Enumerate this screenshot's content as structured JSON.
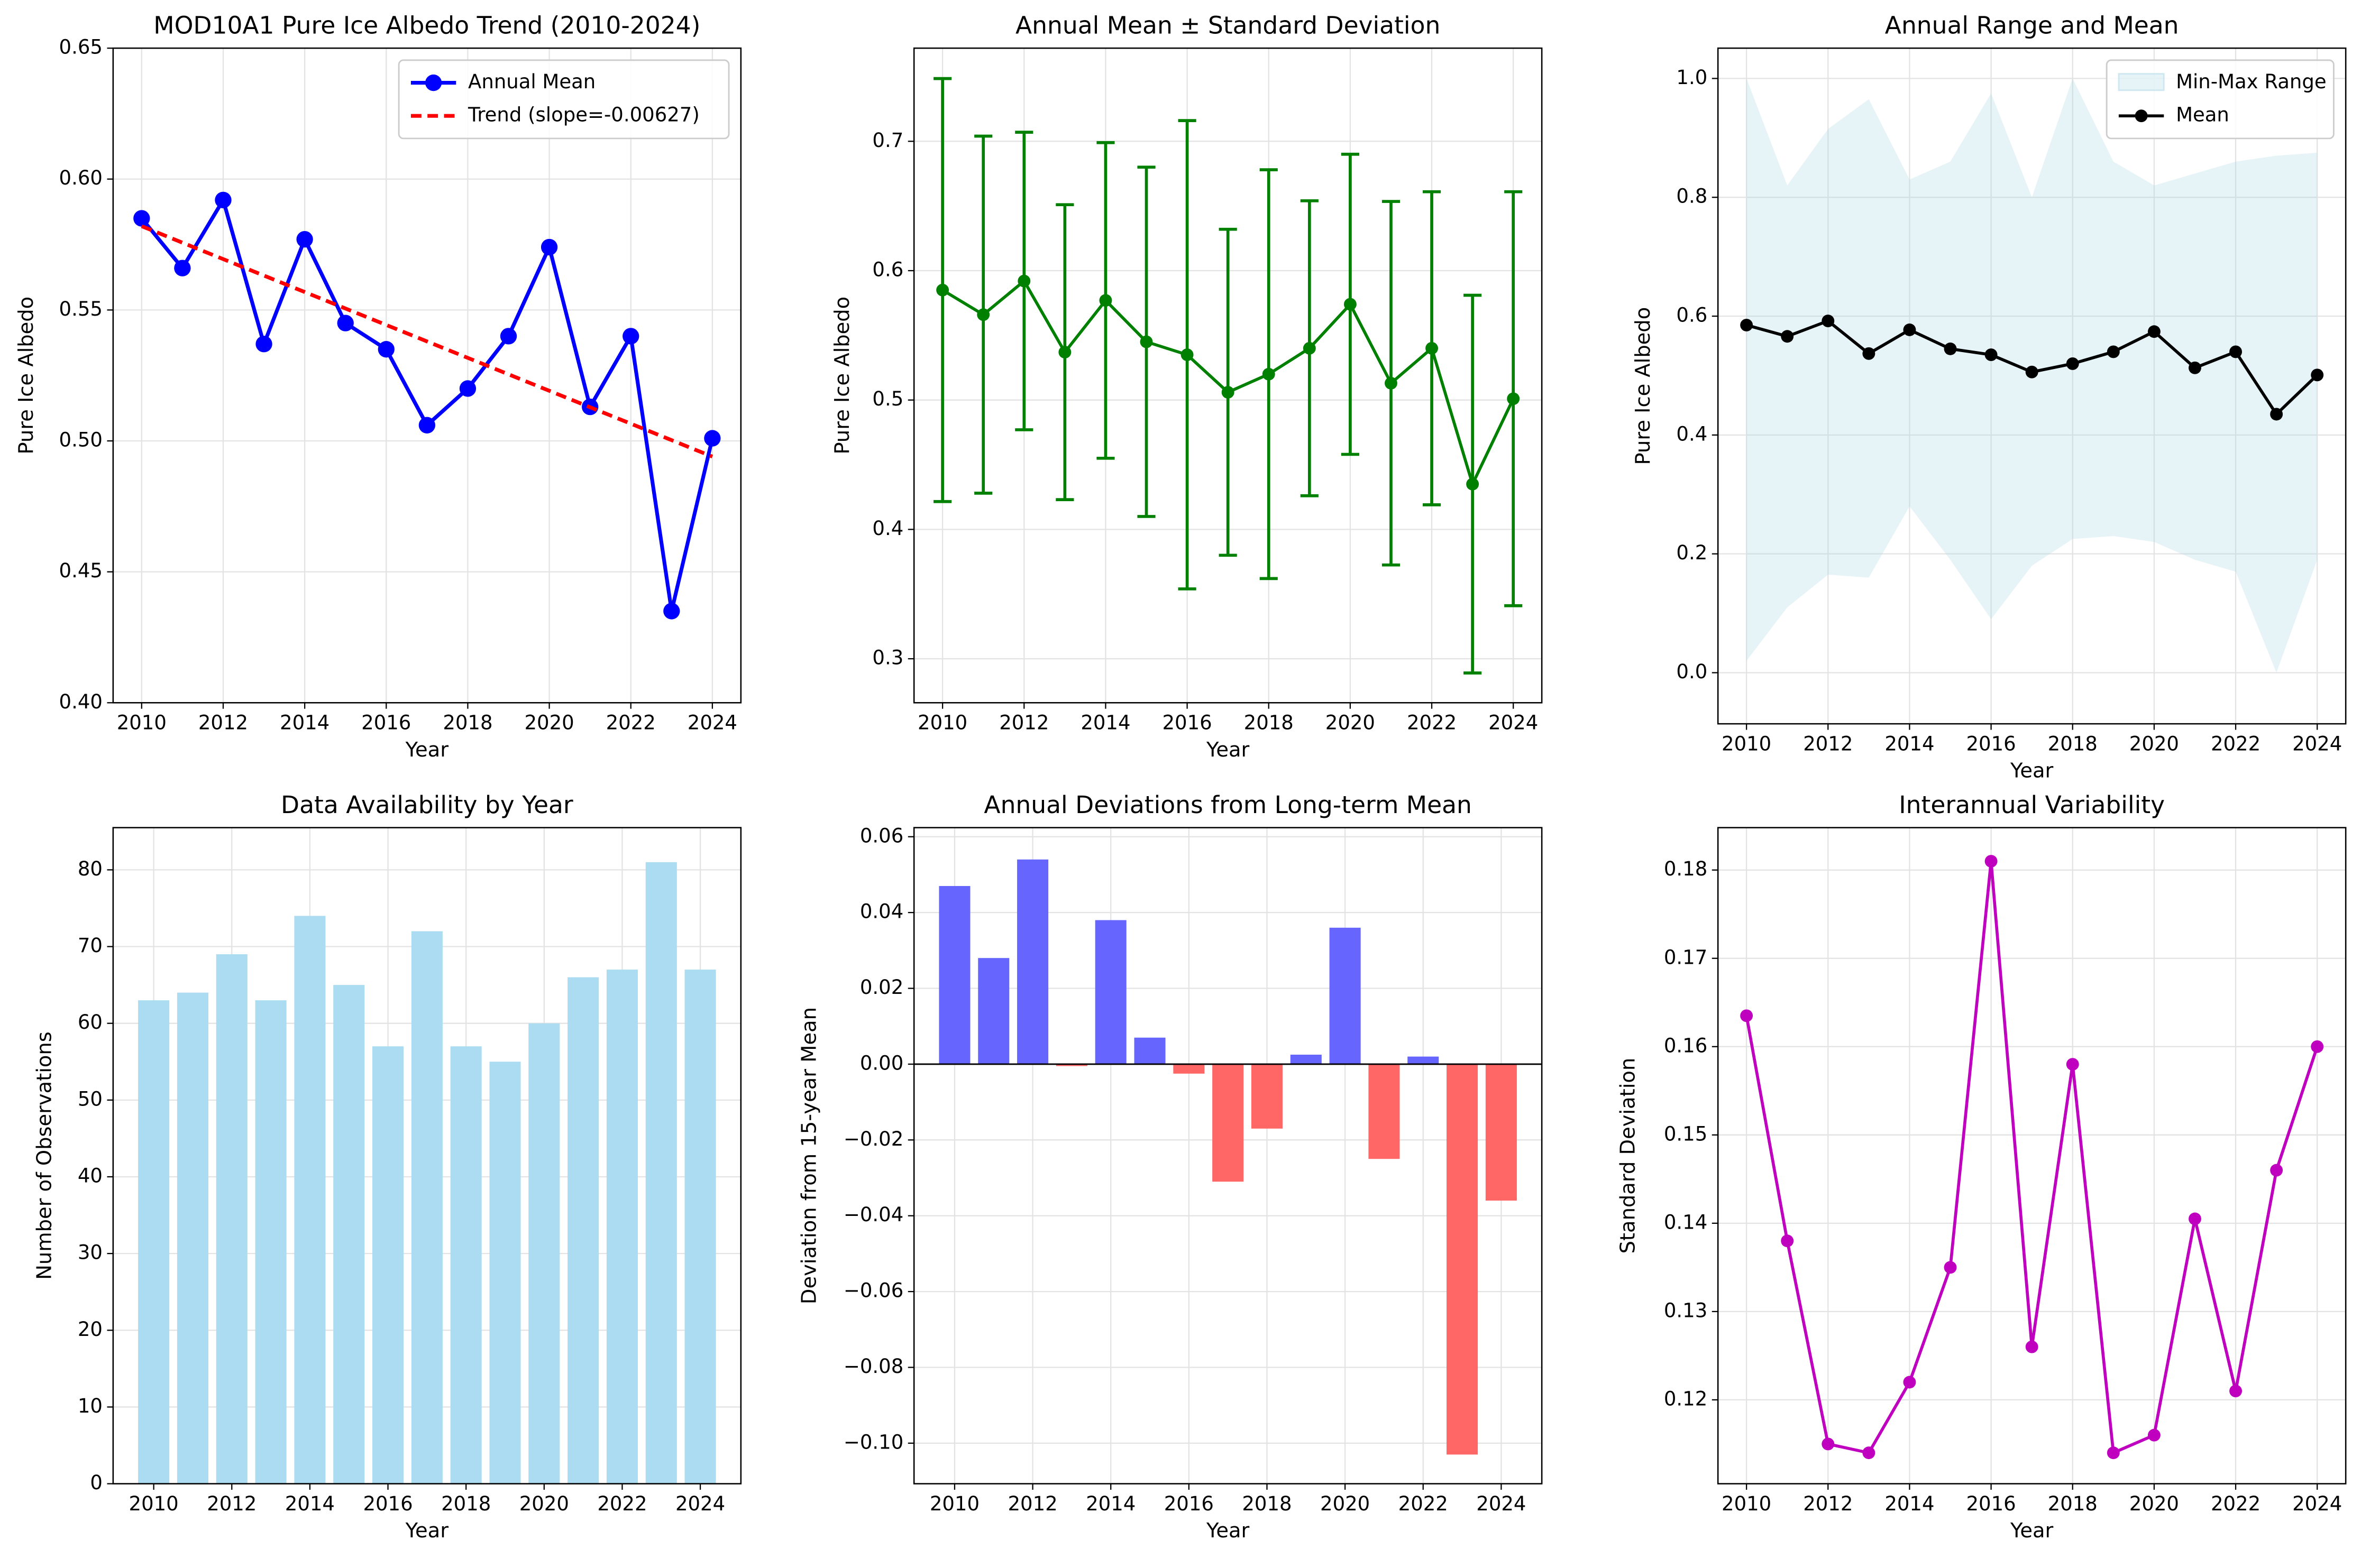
{
  "chart_data": [
    {
      "type": "line",
      "title": "MOD10A1 Pure Ice Albedo Trend (2010-2024)",
      "xlabel": "Year",
      "ylabel": "Pure Ice Albedo",
      "x": [
        2010,
        2011,
        2012,
        2013,
        2014,
        2015,
        2016,
        2017,
        2018,
        2019,
        2020,
        2021,
        2022,
        2023,
        2024
      ],
      "xlim": [
        2009.3,
        2024.7
      ],
      "xticks": [
        2010,
        2012,
        2014,
        2016,
        2018,
        2020,
        2022,
        2024
      ],
      "ylim": [
        0.4,
        0.65
      ],
      "yticks": [
        {
          "value": 0.4,
          "label": "0.40"
        },
        0.45,
        {
          "value": 0.5,
          "label": "0.50"
        },
        0.55,
        {
          "value": 0.6,
          "label": "0.60"
        },
        0.65
      ],
      "grid": true,
      "legend": "upper right",
      "series": [
        {
          "name": "Annual Mean",
          "color": "#0000ff",
          "style": "line",
          "marker": true,
          "values": [
            0.585,
            0.566,
            0.592,
            0.537,
            0.577,
            0.545,
            0.535,
            0.506,
            0.52,
            0.54,
            0.574,
            0.513,
            0.54,
            0.435,
            0.501
          ]
        },
        {
          "name": "Trend (slope=-0.00627)",
          "color": "#ff0000",
          "style": "dashed",
          "marker": false,
          "x": [
            2010,
            2024
          ],
          "values": [
            0.582,
            0.494
          ]
        }
      ]
    },
    {
      "type": "errorbar",
      "title": "Annual Mean ± Standard Deviation",
      "xlabel": "Year",
      "ylabel": "Pure Ice Albedo",
      "x": [
        2010,
        2011,
        2012,
        2013,
        2014,
        2015,
        2016,
        2017,
        2018,
        2019,
        2020,
        2021,
        2022,
        2023,
        2024
      ],
      "xlim": [
        2009.3,
        2024.7
      ],
      "xticks": [
        2010,
        2012,
        2014,
        2016,
        2018,
        2020,
        2022,
        2024
      ],
      "ylim": [
        0.266,
        0.772
      ],
      "yticks": [
        0.3,
        0.4,
        0.5,
        0.6,
        0.7
      ],
      "grid": true,
      "series": [
        {
          "color": "#008000",
          "style": "line",
          "marker": true,
          "values": [
            0.585,
            0.566,
            0.592,
            0.537,
            0.577,
            0.545,
            0.535,
            0.506,
            0.52,
            0.54,
            0.574,
            0.513,
            0.54,
            0.435,
            0.501
          ],
          "errors": [
            0.1635,
            0.138,
            0.115,
            0.114,
            0.122,
            0.135,
            0.181,
            0.126,
            0.158,
            0.114,
            0.116,
            0.1405,
            0.121,
            0.146,
            0.16
          ]
        }
      ]
    },
    {
      "type": "line",
      "title": "Annual Range and Mean",
      "xlabel": "Year",
      "ylabel": "Pure Ice Albedo",
      "x": [
        2010,
        2011,
        2012,
        2013,
        2014,
        2015,
        2016,
        2017,
        2018,
        2019,
        2020,
        2021,
        2022,
        2023,
        2024
      ],
      "xlim": [
        2009.3,
        2024.7
      ],
      "xticks": [
        2010,
        2012,
        2014,
        2016,
        2018,
        2020,
        2022,
        2024
      ],
      "ylim": [
        -0.086,
        1.051
      ],
      "yticks": [
        {
          "value": 0.0,
          "label": "0.0"
        },
        0.2,
        0.4,
        0.6,
        0.8,
        {
          "value": 1.0,
          "label": "1.0"
        }
      ],
      "grid": true,
      "legend": "upper right",
      "series": [
        {
          "name": "Min-Max Range",
          "color": "#add8e6",
          "style": "band",
          "low": [
            0.02,
            0.11,
            0.165,
            0.16,
            0.28,
            0.19,
            0.09,
            0.18,
            0.225,
            0.23,
            0.22,
            0.19,
            0.17,
            0.0,
            0.19
          ],
          "high": [
            1.0,
            0.82,
            0.915,
            0.965,
            0.83,
            0.86,
            0.975,
            0.8,
            1.0,
            0.86,
            0.82,
            0.84,
            0.86,
            0.87,
            0.875
          ]
        },
        {
          "name": "Mean",
          "color": "#000000",
          "style": "line",
          "marker": true,
          "values": [
            0.585,
            0.566,
            0.592,
            0.537,
            0.577,
            0.545,
            0.535,
            0.506,
            0.52,
            0.54,
            0.574,
            0.513,
            0.54,
            0.435,
            0.501
          ]
        }
      ]
    },
    {
      "type": "bar",
      "title": "Data Availability by Year",
      "xlabel": "Year",
      "ylabel": "Number of Observations",
      "x": [
        2010,
        2011,
        2012,
        2013,
        2014,
        2015,
        2016,
        2017,
        2018,
        2019,
        2020,
        2021,
        2022,
        2023,
        2024
      ],
      "xlim": [
        2008.96,
        2025.04
      ],
      "xticks": [
        2010,
        2012,
        2014,
        2016,
        2018,
        2020,
        2022,
        2024
      ],
      "ylim": [
        0,
        85.5
      ],
      "yticks": [
        0,
        10,
        20,
        30,
        40,
        50,
        60,
        70,
        80
      ],
      "grid": true,
      "color": "#abdcf1",
      "values": [
        63,
        64,
        69,
        63,
        74,
        65,
        57,
        72,
        57,
        55,
        60,
        66,
        67,
        81,
        67
      ]
    },
    {
      "type": "bar",
      "title": "Annual Deviations from Long-term Mean",
      "xlabel": "Year",
      "ylabel": "Deviation from 15-year Mean",
      "x": [
        2010,
        2011,
        2012,
        2013,
        2014,
        2015,
        2016,
        2017,
        2018,
        2019,
        2020,
        2021,
        2022,
        2023,
        2024
      ],
      "xlim": [
        2008.96,
        2025.04
      ],
      "xticks": [
        2010,
        2012,
        2014,
        2016,
        2018,
        2020,
        2022,
        2024
      ],
      "ylim": [
        -0.1107,
        0.0624
      ],
      "yticks": [
        {
          "value": -0.1,
          "label": "−0.10"
        },
        {
          "value": -0.08,
          "label": "−0.08"
        },
        {
          "value": -0.06,
          "label": "−0.06"
        },
        {
          "value": -0.04,
          "label": "−0.04"
        },
        {
          "value": -0.02,
          "label": "−0.02"
        },
        {
          "value": 0,
          "label": "0.00"
        },
        0.02,
        0.04,
        0.06
      ],
      "grid": true,
      "zero_line": true,
      "values": [
        0.047,
        0.028,
        0.054,
        -0.0005,
        0.038,
        0.007,
        -0.0025,
        -0.031,
        -0.017,
        0.0025,
        0.036,
        -0.025,
        0.002,
        -0.103,
        -0.036
      ],
      "colors": [
        "#6666ff",
        "#6666ff",
        "#6666ff",
        "#ff6666",
        "#6666ff",
        "#6666ff",
        "#ff6666",
        "#ff6666",
        "#ff6666",
        "#6666ff",
        "#6666ff",
        "#ff6666",
        "#6666ff",
        "#ff6666",
        "#ff6666"
      ]
    },
    {
      "type": "line",
      "title": "Interannual Variability",
      "xlabel": "Year",
      "ylabel": "Standard Deviation",
      "x": [
        2010,
        2011,
        2012,
        2013,
        2014,
        2015,
        2016,
        2017,
        2018,
        2019,
        2020,
        2021,
        2022,
        2023,
        2024
      ],
      "xlim": [
        2009.3,
        2024.7
      ],
      "xticks": [
        2010,
        2012,
        2014,
        2016,
        2018,
        2020,
        2022,
        2024
      ],
      "ylim": [
        0.1105,
        0.1848
      ],
      "yticks": [
        0.12,
        0.13,
        0.14,
        0.15,
        0.16,
        0.17,
        0.18
      ],
      "grid": true,
      "series": [
        {
          "color": "#bf00bf",
          "style": "line",
          "marker": true,
          "values": [
            0.1635,
            0.138,
            0.115,
            0.114,
            0.122,
            0.135,
            0.181,
            0.126,
            0.158,
            0.114,
            0.116,
            0.1405,
            0.121,
            0.146,
            0.16
          ]
        }
      ]
    }
  ]
}
